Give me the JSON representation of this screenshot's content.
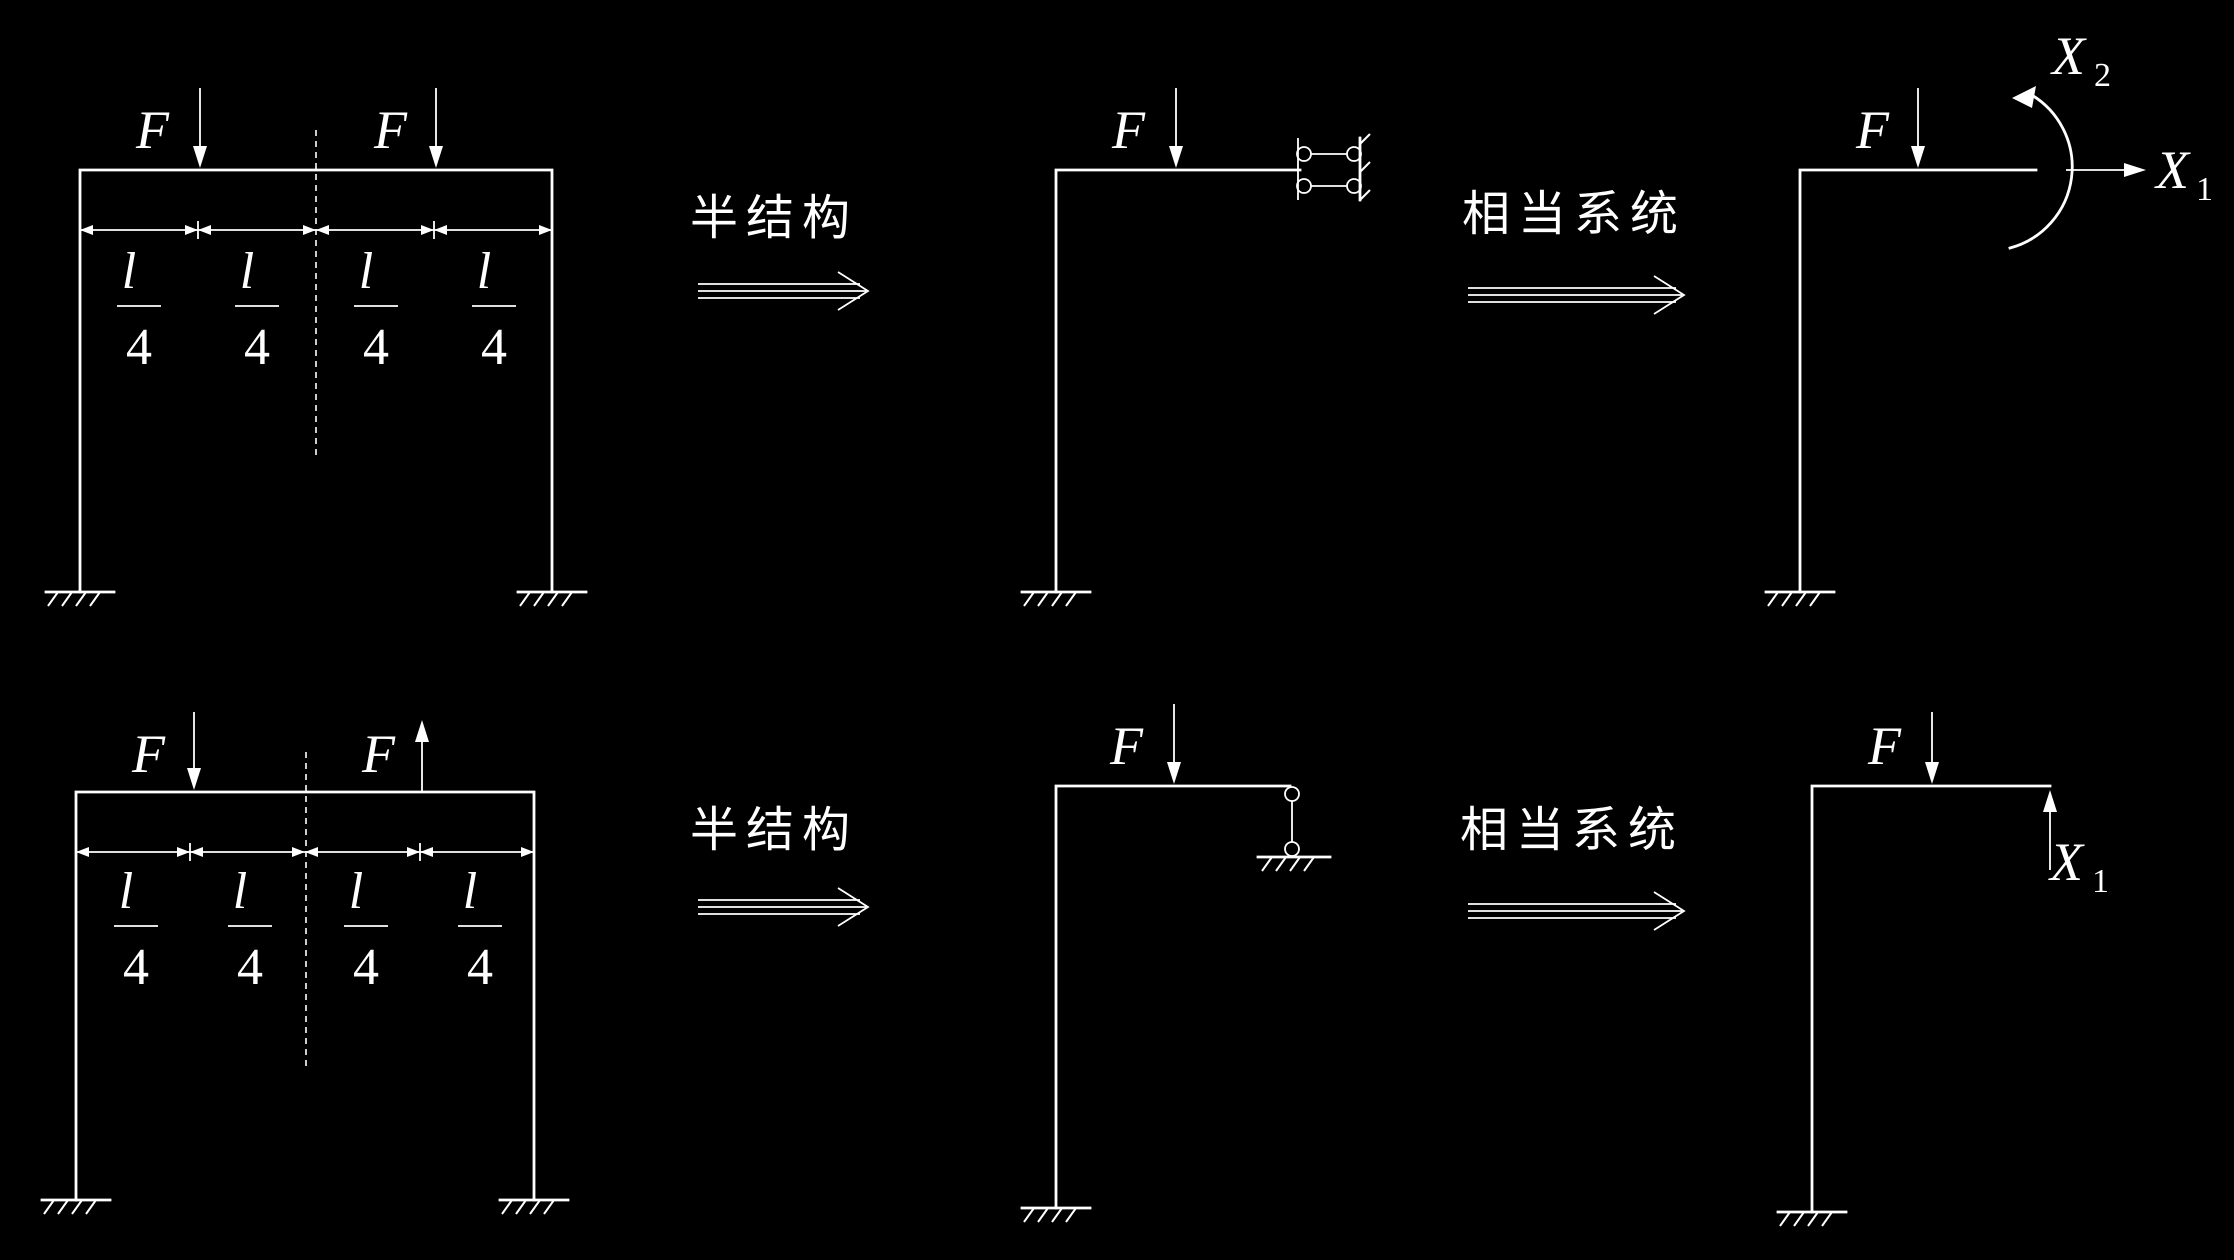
{
  "labels": {
    "force": "F",
    "dim_numerator": "l",
    "dim_denominator": "4",
    "x1_var": "X",
    "x1_sub": "1",
    "x2_var": "X",
    "x2_sub": "2"
  },
  "arrows": {
    "half_structure": "半结构",
    "equivalent_system": "相当系统"
  }
}
